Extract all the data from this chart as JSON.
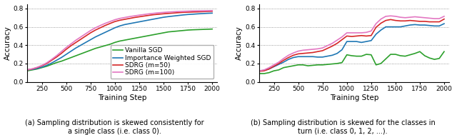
{
  "left_plot": {
    "xlabel": "Training Step",
    "ylabel": "Accuracy",
    "xlim": [
      100,
      2050
    ],
    "ylim": [
      0.0,
      0.85
    ],
    "yticks": [
      0.0,
      0.2,
      0.4,
      0.6,
      0.8
    ],
    "xticks": [
      250,
      500,
      750,
      1000,
      1250,
      1500,
      1750,
      2000
    ],
    "x": [
      100,
      150,
      200,
      250,
      300,
      350,
      400,
      450,
      500,
      550,
      600,
      650,
      700,
      750,
      800,
      850,
      900,
      950,
      1000,
      1050,
      1100,
      1150,
      1200,
      1250,
      1300,
      1350,
      1400,
      1450,
      1500,
      1550,
      1600,
      1650,
      1700,
      1750,
      1800,
      1850,
      1900,
      1950,
      2000
    ],
    "vanilla_sgd": [
      0.12,
      0.13,
      0.14,
      0.155,
      0.17,
      0.19,
      0.21,
      0.225,
      0.245,
      0.265,
      0.285,
      0.305,
      0.325,
      0.345,
      0.365,
      0.38,
      0.395,
      0.41,
      0.43,
      0.445,
      0.455,
      0.465,
      0.475,
      0.485,
      0.495,
      0.505,
      0.515,
      0.525,
      0.535,
      0.545,
      0.55,
      0.555,
      0.56,
      0.565,
      0.568,
      0.57,
      0.572,
      0.574,
      0.576
    ],
    "iw_sgd": [
      0.13,
      0.135,
      0.145,
      0.16,
      0.18,
      0.205,
      0.235,
      0.265,
      0.3,
      0.335,
      0.37,
      0.4,
      0.43,
      0.46,
      0.49,
      0.515,
      0.54,
      0.565,
      0.59,
      0.61,
      0.625,
      0.635,
      0.645,
      0.655,
      0.665,
      0.675,
      0.685,
      0.695,
      0.705,
      0.712,
      0.718,
      0.724,
      0.73,
      0.735,
      0.738,
      0.742,
      0.745,
      0.748,
      0.75
    ],
    "sdrg_50": [
      0.13,
      0.14,
      0.155,
      0.175,
      0.2,
      0.235,
      0.27,
      0.31,
      0.355,
      0.395,
      0.43,
      0.465,
      0.5,
      0.535,
      0.565,
      0.59,
      0.615,
      0.637,
      0.658,
      0.672,
      0.682,
      0.692,
      0.702,
      0.71,
      0.718,
      0.726,
      0.733,
      0.738,
      0.743,
      0.747,
      0.751,
      0.755,
      0.758,
      0.76,
      0.762,
      0.764,
      0.766,
      0.768,
      0.77
    ],
    "sdrg_100": [
      0.13,
      0.142,
      0.158,
      0.18,
      0.208,
      0.245,
      0.285,
      0.33,
      0.375,
      0.415,
      0.455,
      0.49,
      0.525,
      0.56,
      0.59,
      0.615,
      0.638,
      0.658,
      0.678,
      0.692,
      0.702,
      0.712,
      0.72,
      0.728,
      0.735,
      0.742,
      0.748,
      0.754,
      0.758,
      0.762,
      0.765,
      0.768,
      0.77,
      0.772,
      0.774,
      0.775,
      0.776,
      0.777,
      0.778
    ]
  },
  "right_plot": {
    "xlabel": "Training Step",
    "ylabel": "Accuracy",
    "xlim": [
      100,
      2050
    ],
    "ylim": [
      0.0,
      0.85
    ],
    "yticks": [
      0.0,
      0.2,
      0.4,
      0.6,
      0.8
    ],
    "xticks": [
      250,
      500,
      750,
      1000,
      1250,
      1500,
      1750,
      2000
    ],
    "x": [
      100,
      150,
      200,
      250,
      300,
      350,
      400,
      450,
      500,
      550,
      600,
      650,
      700,
      750,
      800,
      850,
      900,
      950,
      1000,
      1050,
      1100,
      1150,
      1200,
      1250,
      1300,
      1350,
      1400,
      1450,
      1500,
      1550,
      1600,
      1650,
      1700,
      1750,
      1800,
      1850,
      1900,
      1950,
      2000
    ],
    "vanilla_sgd": [
      0.09,
      0.09,
      0.1,
      0.12,
      0.13,
      0.155,
      0.165,
      0.175,
      0.185,
      0.185,
      0.175,
      0.18,
      0.185,
      0.185,
      0.19,
      0.195,
      0.2,
      0.21,
      0.295,
      0.285,
      0.28,
      0.28,
      0.3,
      0.295,
      0.185,
      0.2,
      0.25,
      0.3,
      0.3,
      0.285,
      0.28,
      0.295,
      0.31,
      0.33,
      0.285,
      0.26,
      0.245,
      0.255,
      0.33
    ],
    "iw_sgd": [
      0.12,
      0.125,
      0.14,
      0.165,
      0.19,
      0.215,
      0.245,
      0.265,
      0.275,
      0.275,
      0.275,
      0.275,
      0.27,
      0.27,
      0.28,
      0.29,
      0.31,
      0.35,
      0.44,
      0.44,
      0.44,
      0.43,
      0.44,
      0.45,
      0.52,
      0.565,
      0.6,
      0.6,
      0.6,
      0.6,
      0.61,
      0.62,
      0.625,
      0.62,
      0.62,
      0.615,
      0.61,
      0.61,
      0.635
    ],
    "sdrg_50": [
      0.115,
      0.12,
      0.14,
      0.17,
      0.2,
      0.235,
      0.265,
      0.29,
      0.305,
      0.31,
      0.315,
      0.32,
      0.33,
      0.34,
      0.365,
      0.39,
      0.42,
      0.46,
      0.5,
      0.495,
      0.5,
      0.505,
      0.5,
      0.505,
      0.595,
      0.64,
      0.67,
      0.68,
      0.67,
      0.665,
      0.665,
      0.67,
      0.665,
      0.66,
      0.66,
      0.655,
      0.655,
      0.655,
      0.685
    ],
    "sdrg_100": [
      0.12,
      0.13,
      0.155,
      0.185,
      0.215,
      0.255,
      0.29,
      0.315,
      0.335,
      0.345,
      0.35,
      0.355,
      0.36,
      0.37,
      0.395,
      0.42,
      0.455,
      0.49,
      0.535,
      0.535,
      0.535,
      0.535,
      0.54,
      0.555,
      0.635,
      0.685,
      0.715,
      0.72,
      0.715,
      0.705,
      0.7,
      0.705,
      0.71,
      0.705,
      0.7,
      0.695,
      0.69,
      0.69,
      0.715
    ]
  },
  "colors": {
    "vanilla_sgd": "#2ca02c",
    "iw_sgd": "#1f77b4",
    "sdrg_50": "#d62728",
    "sdrg_100": "#e377c2"
  },
  "legend_labels": [
    "Vanilla SGD",
    "Importance Weighted SGD",
    "SDRG (m=50)",
    "SDRG (m=100)"
  ],
  "caption_left": "(a) Sampling distribution is skewed consistently for\na single class (i.e. class 0).",
  "caption_right": "(b) Sampling distribution is skewed for the classes in\nturn (i.e. class 0, 1, 2, ...).",
  "caption_fontsize": 7.0,
  "axis_fontsize": 7.5,
  "tick_fontsize": 6.5,
  "legend_fontsize": 6.5,
  "linewidth": 1.2
}
